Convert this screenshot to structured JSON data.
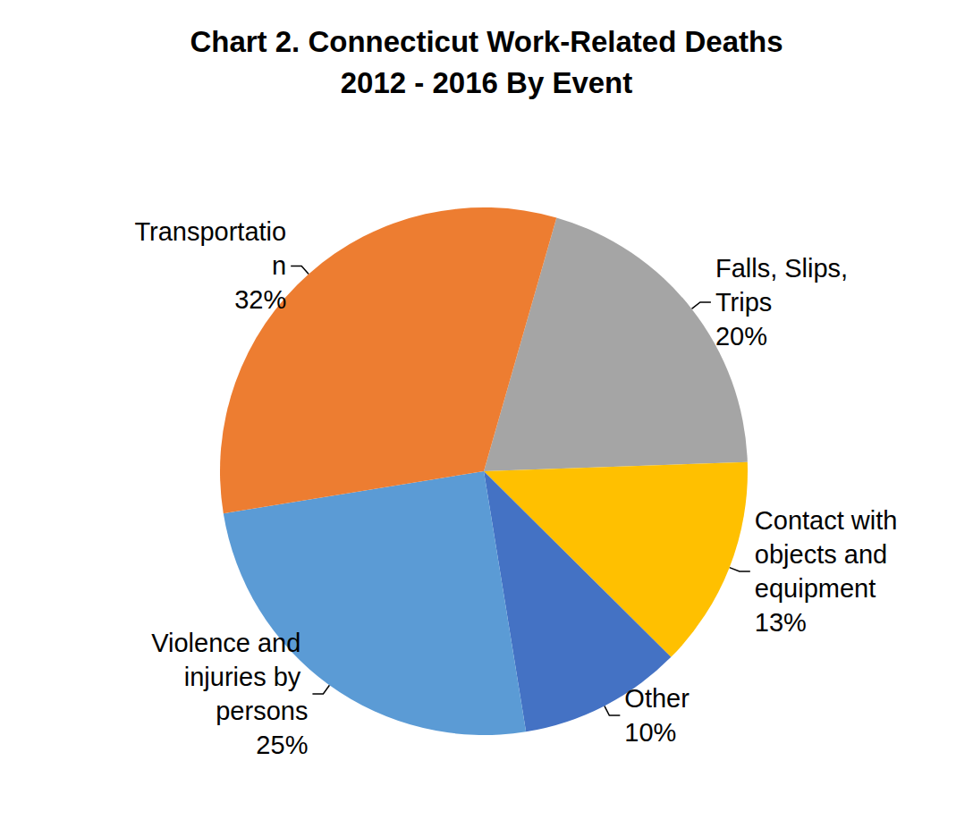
{
  "chart_data": {
    "type": "pie",
    "title": "Chart 2. Connecticut Work-Related Deaths\n2012 - 2016 By Event",
    "categories": [
      "Falls, Slips, Trips",
      "Contact with objects and equipment",
      "Other",
      "Violence and injuries by persons",
      "Transportation"
    ],
    "values": [
      20,
      13,
      10,
      25,
      32
    ],
    "value_labels": [
      "20%",
      "13%",
      "10%",
      "25%",
      "32%"
    ],
    "colors": [
      "#A5A5A5",
      "#FFC000",
      "#4472C4",
      "#5B9BD5",
      "#ED7D31"
    ],
    "data_labels": true
  }
}
